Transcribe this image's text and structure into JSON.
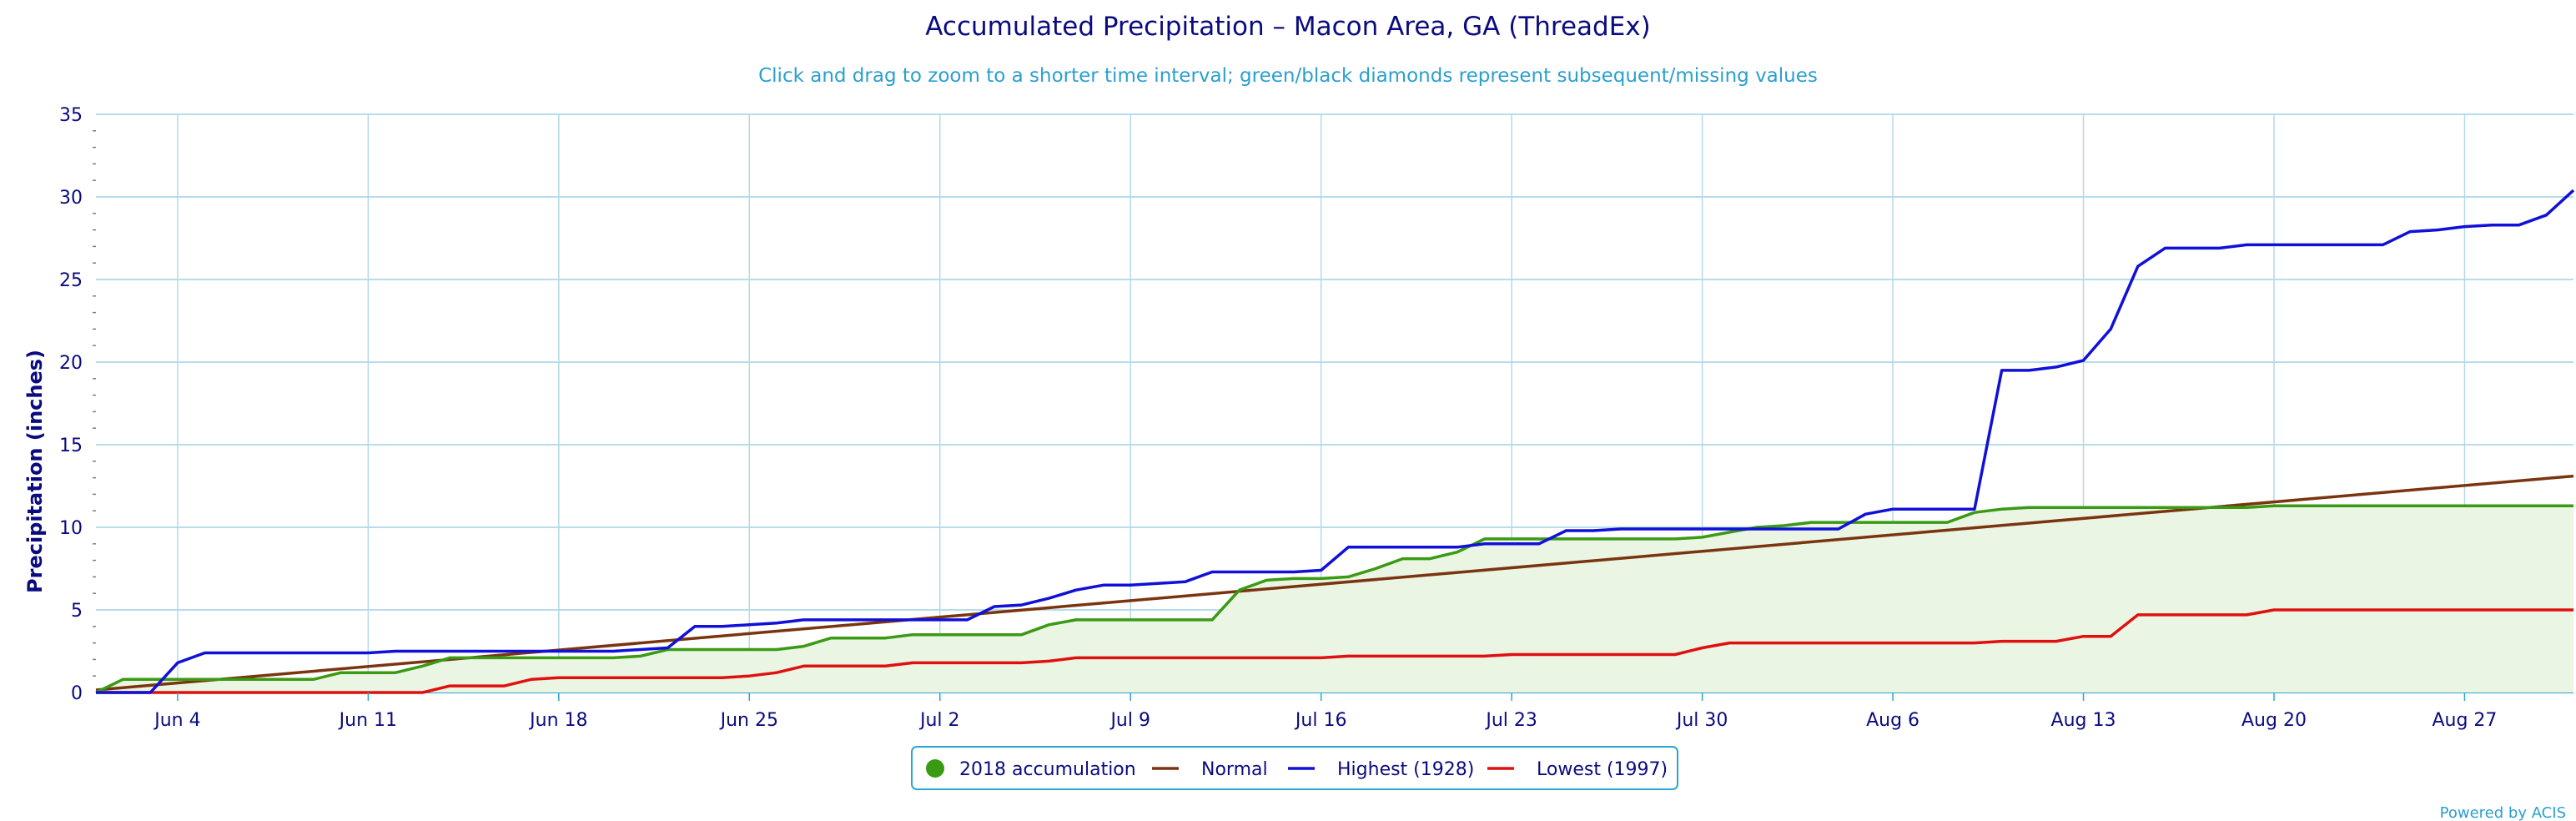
{
  "chart_data": {
    "type": "line",
    "title": "Accumulated Precipitation – Macon Area, GA (ThreadEx)",
    "subtitle": "Click and drag to zoom to a shorter time interval; green/black diamonds represent subsequent/missing values",
    "ylabel": "Precipitation (inches)",
    "xlabel": "",
    "ylim": [
      0,
      35
    ],
    "yticks": [
      0,
      5,
      10,
      15,
      20,
      25,
      30,
      35
    ],
    "xlim": [
      "2018-06-01",
      "2018-08-31"
    ],
    "xticks": [
      {
        "date": "2018-06-04",
        "label": "Jun 4"
      },
      {
        "date": "2018-06-11",
        "label": "Jun 11"
      },
      {
        "date": "2018-06-18",
        "label": "Jun 18"
      },
      {
        "date": "2018-06-25",
        "label": "Jun 25"
      },
      {
        "date": "2018-07-02",
        "label": "Jul 2"
      },
      {
        "date": "2018-07-09",
        "label": "Jul 9"
      },
      {
        "date": "2018-07-16",
        "label": "Jul 16"
      },
      {
        "date": "2018-07-23",
        "label": "Jul 23"
      },
      {
        "date": "2018-07-30",
        "label": "Jul 30"
      },
      {
        "date": "2018-08-06",
        "label": "Aug 6"
      },
      {
        "date": "2018-08-13",
        "label": "Aug 13"
      },
      {
        "date": "2018-08-20",
        "label": "Aug 20"
      },
      {
        "date": "2018-08-27",
        "label": "Aug 27"
      }
    ],
    "grid": true,
    "legend_position": "bottom-center",
    "series": [
      {
        "name": "2018 accumulation",
        "color": "#3a9a14",
        "fill": "#eaf5e3",
        "marker": "circle",
        "points": [
          [
            "2018-06-01",
            0.0
          ],
          [
            "2018-06-02",
            0.8
          ],
          [
            "2018-06-03",
            0.8
          ],
          [
            "2018-06-04",
            0.8
          ],
          [
            "2018-06-05",
            0.8
          ],
          [
            "2018-06-06",
            0.8
          ],
          [
            "2018-06-07",
            0.8
          ],
          [
            "2018-06-08",
            0.8
          ],
          [
            "2018-06-09",
            0.8
          ],
          [
            "2018-06-10",
            1.2
          ],
          [
            "2018-06-11",
            1.2
          ],
          [
            "2018-06-12",
            1.2
          ],
          [
            "2018-06-13",
            1.6
          ],
          [
            "2018-06-14",
            2.1
          ],
          [
            "2018-06-15",
            2.1
          ],
          [
            "2018-06-16",
            2.1
          ],
          [
            "2018-06-17",
            2.1
          ],
          [
            "2018-06-18",
            2.1
          ],
          [
            "2018-06-19",
            2.1
          ],
          [
            "2018-06-20",
            2.1
          ],
          [
            "2018-06-21",
            2.2
          ],
          [
            "2018-06-22",
            2.6
          ],
          [
            "2018-06-23",
            2.6
          ],
          [
            "2018-06-24",
            2.6
          ],
          [
            "2018-06-25",
            2.6
          ],
          [
            "2018-06-26",
            2.6
          ],
          [
            "2018-06-27",
            2.8
          ],
          [
            "2018-06-28",
            3.3
          ],
          [
            "2018-06-29",
            3.3
          ],
          [
            "2018-06-30",
            3.3
          ],
          [
            "2018-07-01",
            3.5
          ],
          [
            "2018-07-02",
            3.5
          ],
          [
            "2018-07-03",
            3.5
          ],
          [
            "2018-07-04",
            3.5
          ],
          [
            "2018-07-05",
            3.5
          ],
          [
            "2018-07-06",
            4.1
          ],
          [
            "2018-07-07",
            4.4
          ],
          [
            "2018-07-08",
            4.4
          ],
          [
            "2018-07-09",
            4.4
          ],
          [
            "2018-07-10",
            4.4
          ],
          [
            "2018-07-11",
            4.4
          ],
          [
            "2018-07-12",
            4.4
          ],
          [
            "2018-07-13",
            6.2
          ],
          [
            "2018-07-14",
            6.8
          ],
          [
            "2018-07-15",
            6.9
          ],
          [
            "2018-07-16",
            6.9
          ],
          [
            "2018-07-17",
            7.0
          ],
          [
            "2018-07-18",
            7.5
          ],
          [
            "2018-07-19",
            8.1
          ],
          [
            "2018-07-20",
            8.1
          ],
          [
            "2018-07-21",
            8.5
          ],
          [
            "2018-07-22",
            9.3
          ],
          [
            "2018-07-23",
            9.3
          ],
          [
            "2018-07-24",
            9.3
          ],
          [
            "2018-07-25",
            9.3
          ],
          [
            "2018-07-26",
            9.3
          ],
          [
            "2018-07-27",
            9.3
          ],
          [
            "2018-07-28",
            9.3
          ],
          [
            "2018-07-29",
            9.3
          ],
          [
            "2018-07-30",
            9.4
          ],
          [
            "2018-07-31",
            9.7
          ],
          [
            "2018-08-01",
            10.0
          ],
          [
            "2018-08-02",
            10.1
          ],
          [
            "2018-08-03",
            10.3
          ],
          [
            "2018-08-04",
            10.3
          ],
          [
            "2018-08-05",
            10.3
          ],
          [
            "2018-08-06",
            10.3
          ],
          [
            "2018-08-07",
            10.3
          ],
          [
            "2018-08-08",
            10.3
          ],
          [
            "2018-08-09",
            10.9
          ],
          [
            "2018-08-10",
            11.1
          ],
          [
            "2018-08-11",
            11.2
          ],
          [
            "2018-08-12",
            11.2
          ],
          [
            "2018-08-13",
            11.2
          ],
          [
            "2018-08-14",
            11.2
          ],
          [
            "2018-08-15",
            11.2
          ],
          [
            "2018-08-16",
            11.2
          ],
          [
            "2018-08-17",
            11.2
          ],
          [
            "2018-08-18",
            11.2
          ],
          [
            "2018-08-19",
            11.2
          ],
          [
            "2018-08-20",
            11.3
          ],
          [
            "2018-08-21",
            11.3
          ],
          [
            "2018-08-22",
            11.3
          ],
          [
            "2018-08-23",
            11.3
          ],
          [
            "2018-08-24",
            11.3
          ],
          [
            "2018-08-25",
            11.3
          ],
          [
            "2018-08-26",
            11.3
          ],
          [
            "2018-08-27",
            11.3
          ],
          [
            "2018-08-28",
            11.3
          ],
          [
            "2018-08-29",
            11.3
          ],
          [
            "2018-08-30",
            11.3
          ],
          [
            "2018-08-31",
            11.3
          ]
        ]
      },
      {
        "name": "Normal",
        "color": "#7a3510",
        "marker": "line",
        "points": [
          [
            "2018-06-01",
            0.15
          ],
          [
            "2018-08-31",
            13.1
          ]
        ]
      },
      {
        "name": "Highest (1928)",
        "color": "#1010d8",
        "marker": "line",
        "points": [
          [
            "2018-06-01",
            0.0
          ],
          [
            "2018-06-03",
            0.0
          ],
          [
            "2018-06-04",
            1.8
          ],
          [
            "2018-06-05",
            2.4
          ],
          [
            "2018-06-06",
            2.4
          ],
          [
            "2018-06-11",
            2.4
          ],
          [
            "2018-06-12",
            2.5
          ],
          [
            "2018-06-20",
            2.5
          ],
          [
            "2018-06-21",
            2.6
          ],
          [
            "2018-06-22",
            2.7
          ],
          [
            "2018-06-23",
            4.0
          ],
          [
            "2018-06-24",
            4.0
          ],
          [
            "2018-06-25",
            4.1
          ],
          [
            "2018-06-26",
            4.2
          ],
          [
            "2018-06-27",
            4.4
          ],
          [
            "2018-07-03",
            4.4
          ],
          [
            "2018-07-04",
            5.2
          ],
          [
            "2018-07-05",
            5.3
          ],
          [
            "2018-07-06",
            5.7
          ],
          [
            "2018-07-07",
            6.2
          ],
          [
            "2018-07-08",
            6.5
          ],
          [
            "2018-07-09",
            6.5
          ],
          [
            "2018-07-10",
            6.6
          ],
          [
            "2018-07-11",
            6.7
          ],
          [
            "2018-07-12",
            7.3
          ],
          [
            "2018-07-15",
            7.3
          ],
          [
            "2018-07-16",
            7.4
          ],
          [
            "2018-07-17",
            8.8
          ],
          [
            "2018-07-21",
            8.8
          ],
          [
            "2018-07-22",
            9.0
          ],
          [
            "2018-07-24",
            9.0
          ],
          [
            "2018-07-25",
            9.8
          ],
          [
            "2018-07-26",
            9.8
          ],
          [
            "2018-07-27",
            9.9
          ],
          [
            "2018-08-04",
            9.9
          ],
          [
            "2018-08-05",
            10.8
          ],
          [
            "2018-08-06",
            11.1
          ],
          [
            "2018-08-09",
            11.1
          ],
          [
            "2018-08-10",
            19.5
          ],
          [
            "2018-08-11",
            19.5
          ],
          [
            "2018-08-12",
            19.7
          ],
          [
            "2018-08-13",
            20.1
          ],
          [
            "2018-08-14",
            22.0
          ],
          [
            "2018-08-15",
            25.8
          ],
          [
            "2018-08-16",
            26.9
          ],
          [
            "2018-08-18",
            26.9
          ],
          [
            "2018-08-19",
            27.1
          ],
          [
            "2018-08-24",
            27.1
          ],
          [
            "2018-08-25",
            27.9
          ],
          [
            "2018-08-26",
            28.0
          ],
          [
            "2018-08-27",
            28.2
          ],
          [
            "2018-08-28",
            28.3
          ],
          [
            "2018-08-29",
            28.3
          ],
          [
            "2018-08-30",
            28.9
          ],
          [
            "2018-08-31",
            30.4
          ]
        ]
      },
      {
        "name": "Lowest (1997)",
        "color": "#e01010",
        "marker": "line",
        "points": [
          [
            "2018-06-01",
            0.0
          ],
          [
            "2018-06-13",
            0.0
          ],
          [
            "2018-06-14",
            0.4
          ],
          [
            "2018-06-15",
            0.4
          ],
          [
            "2018-06-16",
            0.4
          ],
          [
            "2018-06-17",
            0.8
          ],
          [
            "2018-06-18",
            0.9
          ],
          [
            "2018-06-24",
            0.9
          ],
          [
            "2018-06-25",
            1.0
          ],
          [
            "2018-06-26",
            1.2
          ],
          [
            "2018-06-27",
            1.6
          ],
          [
            "2018-06-30",
            1.6
          ],
          [
            "2018-07-01",
            1.8
          ],
          [
            "2018-07-05",
            1.8
          ],
          [
            "2018-07-06",
            1.9
          ],
          [
            "2018-07-07",
            2.1
          ],
          [
            "2018-07-16",
            2.1
          ],
          [
            "2018-07-17",
            2.2
          ],
          [
            "2018-07-22",
            2.2
          ],
          [
            "2018-07-23",
            2.3
          ],
          [
            "2018-07-29",
            2.3
          ],
          [
            "2018-07-30",
            2.7
          ],
          [
            "2018-07-31",
            3.0
          ],
          [
            "2018-08-09",
            3.0
          ],
          [
            "2018-08-10",
            3.1
          ],
          [
            "2018-08-12",
            3.1
          ],
          [
            "2018-08-13",
            3.4
          ],
          [
            "2018-08-14",
            3.4
          ],
          [
            "2018-08-15",
            4.7
          ],
          [
            "2018-08-19",
            4.7
          ],
          [
            "2018-08-20",
            5.0
          ],
          [
            "2018-08-31",
            5.0
          ]
        ]
      }
    ],
    "credits": "Powered by ACIS"
  }
}
